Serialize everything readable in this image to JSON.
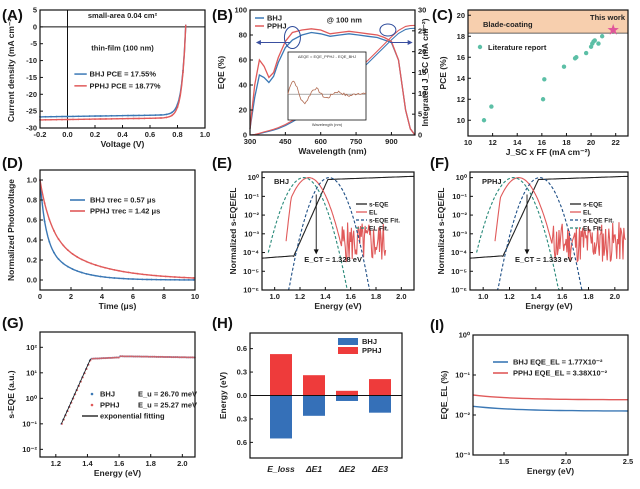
{
  "colors": {
    "bhj": "#3b78b5",
    "pphj": "#e05a5a",
    "green_fit": "#2a8a7a",
    "navy_fit": "#1f4f86",
    "black": "#111111",
    "band": "#f7cfae",
    "star": "#e0559a",
    "scatter": "#5cbfa6",
    "bar_blue": "#3570b8",
    "bar_red": "#ee3b3b"
  },
  "chart_data": [
    {
      "panel": "(A)",
      "type": "line",
      "xlabel": "Voltage (V)",
      "ylabel": "Current density (mA cm⁻²)",
      "xlim": [
        -0.2,
        1.0
      ],
      "ylim": [
        -30,
        5
      ],
      "xticks": [
        "-0.2",
        "0.0",
        "0.2",
        "0.4",
        "0.6",
        "0.8",
        "1.0"
      ],
      "yticks": [
        "5",
        "0",
        "-5",
        "-10",
        "-15",
        "-20",
        "-25",
        "-30"
      ],
      "annotations": [
        "small-area  0.04 cm²",
        "thin-film (100 nm)"
      ],
      "series": [
        {
          "name": "BHJ",
          "label": "BHJ    PCE = 17.55%",
          "voc": 0.86,
          "jsc": -26.7
        },
        {
          "name": "PPHJ",
          "label": "PPHJ  PCE = 18.77%",
          "voc": 0.86,
          "jsc": -27.6
        }
      ]
    },
    {
      "panel": "(B)",
      "type": "line",
      "xlabel": "Wavelength (nm)",
      "ylabel": "EQE (%)",
      "y2label": "Integrated J_SC (mA cm⁻²)",
      "xlim": [
        300,
        1000
      ],
      "ylim": [
        0,
        100
      ],
      "y2lim": [
        0,
        30
      ],
      "xticks": [
        "300",
        "450",
        "600",
        "750",
        "900"
      ],
      "yticks": [
        "0",
        "20",
        "40",
        "60",
        "80",
        "100"
      ],
      "y2ticks": [
        "0",
        "5",
        "10",
        "15",
        "20",
        "25",
        "30"
      ],
      "annotation": "@ 100 nm",
      "inset": {
        "label": "ΔEQE = EQE_PPHJ - EQE_BHJ",
        "xlabel": "Wavelength (nm)",
        "ylabel": "ΔEQE"
      },
      "series": [
        {
          "name": "BHJ",
          "x": [
            300,
            320,
            340,
            360,
            380,
            400,
            420,
            450,
            480,
            520,
            560,
            600,
            640,
            680,
            720,
            760,
            800,
            840,
            870,
            900,
            930,
            960,
            980,
            1000
          ],
          "y": [
            5,
            30,
            48,
            46,
            42,
            47,
            58,
            70,
            76,
            80,
            82,
            81,
            79,
            80,
            81,
            80,
            79,
            78,
            76,
            74,
            60,
            20,
            5,
            0
          ]
        },
        {
          "name": "PPHJ",
          "x": [
            300,
            320,
            340,
            360,
            380,
            400,
            420,
            450,
            480,
            520,
            560,
            600,
            640,
            680,
            720,
            760,
            800,
            840,
            870,
            900,
            930,
            960,
            980,
            1000
          ],
          "y": [
            5,
            40,
            60,
            55,
            46,
            50,
            62,
            75,
            82,
            84,
            85,
            84,
            81,
            82,
            83,
            82,
            81,
            80,
            78,
            75,
            60,
            20,
            5,
            0
          ]
        }
      ],
      "integrated_jsc": {
        "BHJ_final": 25.6,
        "PPHJ_final": 26.3
      }
    },
    {
      "panel": "(C)",
      "type": "scatter",
      "xlabel": "J_SC x FF (mA cm⁻²)",
      "ylabel": "PCE (%)",
      "xlim": [
        10,
        23
      ],
      "ylim": [
        8.5,
        20.5
      ],
      "xticks": [
        "10",
        "12",
        "14",
        "16",
        "18",
        "20",
        "22"
      ],
      "yticks": [
        "10",
        "12",
        "14",
        "16",
        "18",
        "20"
      ],
      "band_label": "Blade-coating",
      "this_work_label": "This work",
      "legend": "Literature report",
      "points": [
        [
          11.3,
          10.0
        ],
        [
          11.9,
          11.3
        ],
        [
          16.1,
          12.0
        ],
        [
          16.2,
          13.9
        ],
        [
          17.8,
          15.1
        ],
        [
          18.7,
          15.9
        ],
        [
          18.8,
          16.0
        ],
        [
          19.6,
          16.4
        ],
        [
          20.0,
          17.0
        ],
        [
          20.1,
          17.3
        ],
        [
          20.2,
          17.5
        ],
        [
          20.3,
          17.6
        ],
        [
          20.6,
          17.3
        ],
        [
          20.9,
          18.0
        ]
      ],
      "this_work": [
        21.8,
        18.6
      ]
    },
    {
      "panel": "(D)",
      "type": "line",
      "xlabel": "Time (μs)",
      "ylabel": "Normalized Photovoltage",
      "xlim": [
        0,
        10
      ],
      "ylim": [
        -0.1,
        1.1
      ],
      "xticks": [
        "0",
        "2",
        "4",
        "6",
        "8",
        "10"
      ],
      "yticks": [
        "0.0",
        "0.2",
        "0.4",
        "0.6",
        "0.8",
        "1.0"
      ],
      "series": [
        {
          "name": "BHJ",
          "label": "BHJ     τrec = 0.57 μs",
          "tau": 0.57
        },
        {
          "name": "PPHJ",
          "label": "PPHJ  τrec = 1.42 μs",
          "tau": 1.42
        }
      ]
    },
    {
      "panel": "(E)",
      "type": "line",
      "xlabel": "Energy (eV)",
      "ylabel": "Normalized s-EQE/EL",
      "xlim": [
        0.9,
        2.1
      ],
      "ylim_log": [
        -6,
        0.3
      ],
      "xticks": [
        "1.0",
        "1.2",
        "1.4",
        "1.6",
        "1.8",
        "2.0"
      ],
      "yticks": [
        "10⁰",
        "10⁻¹",
        "10⁻²",
        "10⁻³",
        "10⁻⁴",
        "10⁻⁵",
        "10⁻⁶"
      ],
      "title": "BHJ",
      "ect_label": "E_CT = 1.328 eV",
      "ect": 1.328,
      "legend": [
        "s-EQE",
        "EL",
        "s-EQE Fit.",
        "EL Fit."
      ]
    },
    {
      "panel": "(F)",
      "type": "line",
      "xlabel": "Energy (eV)",
      "ylabel": "Normalized s-EQE/EL",
      "xlim": [
        0.9,
        2.1
      ],
      "ylim_log": [
        -6,
        0.3
      ],
      "xticks": [
        "1.0",
        "1.2",
        "1.4",
        "1.6",
        "1.8",
        "2.0"
      ],
      "yticks": [
        "10⁰",
        "10⁻¹",
        "10⁻²",
        "10⁻³",
        "10⁻⁴",
        "10⁻⁵",
        "10⁻⁶"
      ],
      "title": "PPHJ",
      "ect_label": "E_CT = 1.333 eV",
      "ect": 1.333,
      "legend": [
        "s-EQE",
        "EL",
        "s-EQE Fit.",
        "EL Fit."
      ]
    },
    {
      "panel": "(G)",
      "type": "scatter",
      "xlabel": "Energy (eV)",
      "ylabel": "s-EQE (a.u.)",
      "xlim": [
        1.1,
        2.08
      ],
      "ylim_log": [
        -2.3,
        2.6
      ],
      "xticks": [
        "1.2",
        "1.4",
        "1.6",
        "1.8",
        "2.0"
      ],
      "yticks": [
        "10²",
        "10¹",
        "10⁰",
        "10⁻¹",
        "10⁻²"
      ],
      "series": [
        {
          "name": "BHJ",
          "label": "BHJ",
          "eu_label": "E_u = 26.70 meV"
        },
        {
          "name": "PPHJ",
          "label": "PPHJ",
          "eu_label": "E_u = 25.27 meV"
        }
      ],
      "fit_label": "exponential   fitting"
    },
    {
      "panel": "(H)",
      "type": "bar",
      "ylabel": "Energy (eV)",
      "ylim": [
        -0.8,
        0.8
      ],
      "yticks": [
        "0.6",
        "0.3",
        "0.0",
        "0.3",
        "0.6"
      ],
      "categories": [
        "E_loss",
        "ΔE1",
        "ΔE2",
        "ΔE3"
      ],
      "series": [
        {
          "name": "BHJ",
          "values": [
            -0.55,
            -0.26,
            -0.07,
            -0.22
          ]
        },
        {
          "name": "PPHJ",
          "values": [
            0.53,
            0.26,
            0.06,
            0.21
          ]
        }
      ]
    },
    {
      "panel": "(I)",
      "type": "line",
      "xlabel": "Energy (eV)",
      "ylabel": "EQE_EL (%)",
      "xlim": [
        1.25,
        2.5
      ],
      "ylim_log": [
        -3,
        0
      ],
      "xticks": [
        "1.5",
        "2.0",
        "2.5"
      ],
      "yticks": [
        "10⁰",
        "10⁻¹",
        "10⁻²",
        "10⁻³"
      ],
      "series": [
        {
          "name": "BHJ",
          "label": "BHJ    EQE_EL = 1.77X10⁻²",
          "value": 0.0177
        },
        {
          "name": "PPHJ",
          "label": "PPHJ  EQE_EL = 3.38X10⁻²",
          "value": 0.0338
        }
      ]
    }
  ]
}
